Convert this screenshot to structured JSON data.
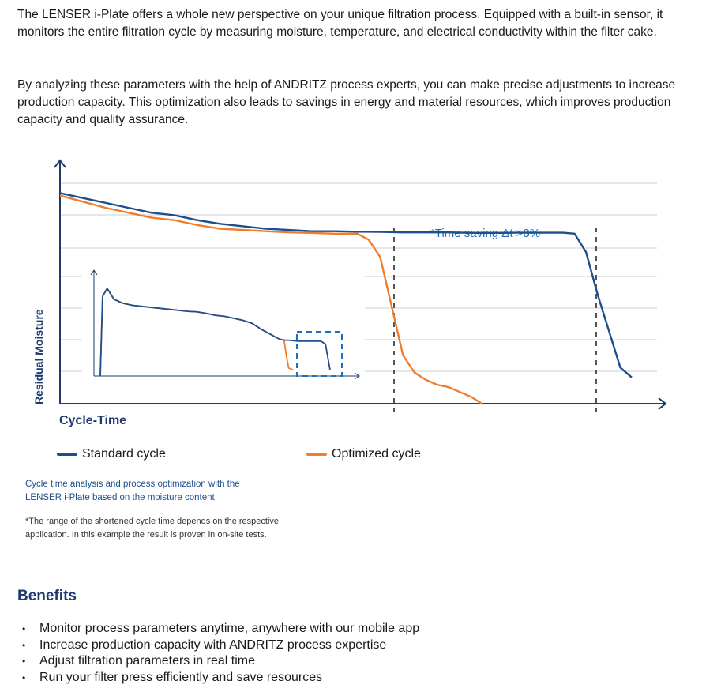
{
  "intro": {
    "paragraph1": "The LENSER i-Plate offers a whole new perspective on your unique filtration process. Equipped with a built-in sensor, it monitors the entire filtration cycle by measuring moisture, temperature, and electrical conductivity within the filter cake.",
    "paragraph2": "By analyzing these parameters with the help of ANDRITZ process experts, you can make precise adjustments to increase production capacity. This optimization also leads to savings in energy and material resources, which improves production capacity and quality assurance."
  },
  "chart_data": {
    "type": "line",
    "title": "",
    "xlabel": "Cycle-Time",
    "ylabel": "Residual Moisture",
    "annotation": "*Time saving Δt >8%",
    "grid": true,
    "legend_placement": "bottom",
    "series": [
      {
        "name": "Standard cycle",
        "color": "#1e4f8c",
        "x": [
          0,
          4,
          8,
          12,
          16,
          20,
          24,
          28,
          32,
          36,
          40,
          44,
          48,
          52,
          56,
          60,
          64,
          68,
          72,
          76,
          80,
          84,
          88,
          90,
          92,
          94,
          96,
          98,
          100
        ],
        "y": [
          86,
          84,
          82,
          80,
          78,
          77,
          75,
          73.5,
          72.5,
          71.5,
          71,
          70.5,
          70.5,
          70.3,
          70.2,
          70,
          70,
          70,
          69.8,
          69.8,
          69.9,
          69.9,
          69.9,
          69.5,
          62,
          45,
          30,
          15,
          11
        ]
      },
      {
        "name": "Optimized cycle",
        "color": "#f07d2e",
        "x": [
          0,
          4,
          8,
          12,
          16,
          20,
          24,
          28,
          32,
          36,
          40,
          44,
          48,
          52,
          54,
          56,
          58,
          60,
          62,
          64,
          66,
          68,
          70,
          72,
          74
        ],
        "y": [
          85,
          82.5,
          80,
          78,
          76,
          75,
          73,
          71.5,
          71,
          70.5,
          70,
          69.8,
          69.5,
          69.5,
          67,
          60,
          40,
          20,
          13,
          10,
          8,
          7,
          5,
          3,
          0
        ]
      }
    ],
    "inset": {
      "series": [
        {
          "name": "Standard cycle",
          "x": [
            0,
            1,
            3,
            6,
            10,
            14,
            18,
            22,
            26,
            30,
            34,
            38,
            42,
            46,
            50,
            54,
            58,
            62,
            66,
            70,
            74,
            78,
            80,
            82,
            84,
            86,
            88,
            90,
            92,
            94,
            96,
            98,
            100
          ],
          "y": [
            0,
            80,
            88,
            77,
            73,
            71,
            70,
            69,
            68,
            67,
            66,
            65,
            64.5,
            63,
            61,
            60,
            58,
            56,
            53,
            47,
            42,
            37,
            36,
            36,
            35.5,
            35,
            35,
            35,
            35,
            35,
            35,
            32,
            6
          ]
        },
        {
          "name": "Optimized cycle",
          "x": [
            0,
            1,
            3,
            6,
            10,
            14,
            18,
            22,
            26,
            30,
            34,
            38,
            42,
            46,
            50,
            54,
            58,
            62,
            66,
            70,
            74,
            78,
            80,
            81,
            82,
            84
          ],
          "y": [
            0,
            80,
            88,
            77,
            73,
            71,
            70,
            69,
            68,
            67,
            66,
            65,
            64.5,
            63,
            61,
            60,
            58,
            56,
            53,
            47,
            42,
            37,
            36,
            20,
            8,
            6
          ]
        }
      ]
    }
  },
  "legend": {
    "standard_label": "Standard cycle",
    "optimized_label": "Optimized cycle"
  },
  "caption": {
    "line1": "Cycle time analysis and process optimization with the",
    "line2": "LENSER i-Plate based on the moisture content"
  },
  "footnote": {
    "line1": "*The range of the shortened cycle time depends on the respective",
    "line2": "application. In this example the result is proven in on-site tests."
  },
  "benefits": {
    "title": "Benefits",
    "items": [
      "Monitor process parameters anytime, anywhere with our mobile app",
      "Increase production capacity with ANDRITZ process expertise",
      "Adjust filtration parameters in real time",
      "Run your filter press efficiently and save resources"
    ]
  }
}
